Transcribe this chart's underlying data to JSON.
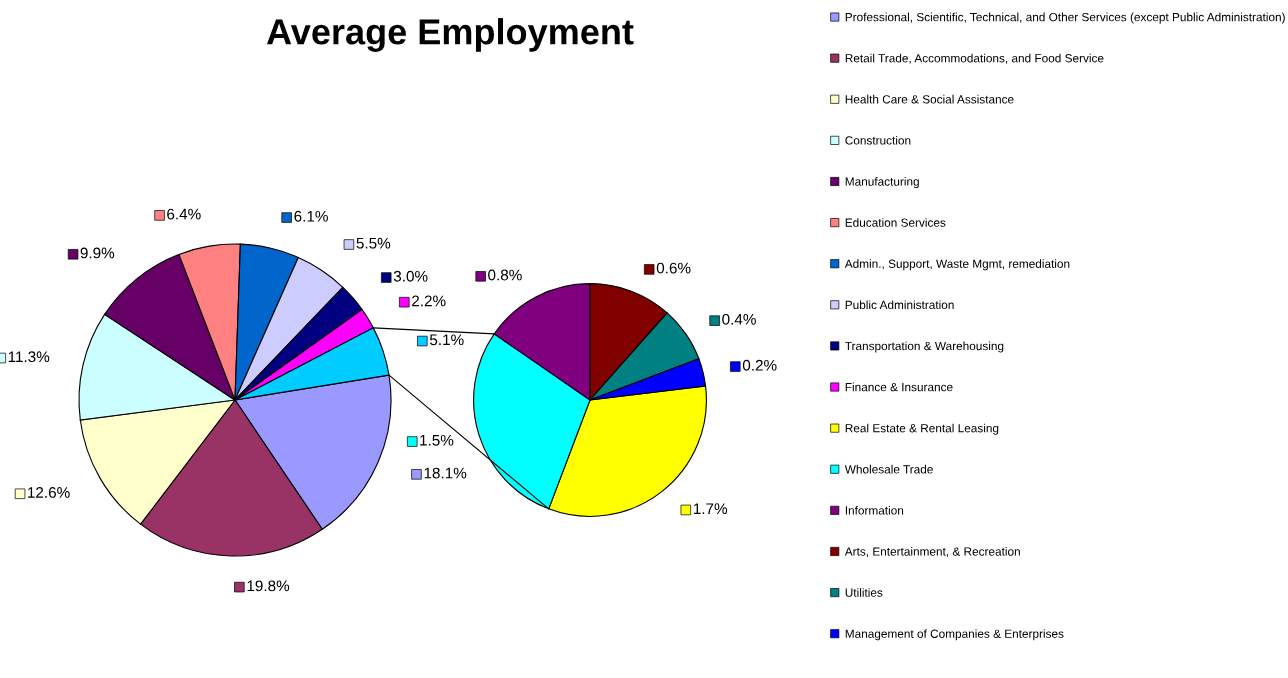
{
  "chart_data": [
    {
      "type": "pie",
      "title": "Average Employment",
      "categories": [
        "Professional, Scientific, Technical, and Other Services (except Public Administration)",
        "Retail Trade, Accommodations, and Food Service",
        "Health Care & Social Assistance",
        "Construction",
        "Manufacturing",
        "Education Services",
        "Admin., Support, Waste Mgmt, remediation",
        "Public Administration",
        "Transportation & Warehousing",
        "Finance & Insurance",
        null
      ],
      "values": [
        18.1,
        19.8,
        12.6,
        11.3,
        9.9,
        6.4,
        6.1,
        5.5,
        3.0,
        2.2,
        5.1
      ],
      "value_labels": [
        "18.1%",
        "19.8%",
        "12.6%",
        "11.3%",
        "9.9%",
        "6.4%",
        "6.1%",
        "5.5%",
        "3.0%",
        "2.2%",
        "5.1%"
      ],
      "colors": [
        "#9999ff",
        "#993366",
        "#ffffcc",
        "#ccffff",
        "#660066",
        "#ff8080",
        "#0066cc",
        "#ccccff",
        "#000080",
        "#ff00ff",
        "#00ccff"
      ],
      "legend": "right"
    },
    {
      "type": "pie",
      "categories": [
        "Real Estate & Rental Leasing",
        "Wholesale Trade",
        "Information",
        "Arts, Entertainment, & Recreation",
        "Utilities",
        "Management of Companies & Enterprises"
      ],
      "values": [
        1.7,
        1.5,
        0.8,
        0.6,
        0.4,
        0.2
      ],
      "value_labels": [
        "1.7%",
        "1.5%",
        "0.8%",
        "0.6%",
        "0.4%",
        "0.2%"
      ],
      "colors": [
        "#ffff00",
        "#00ffff",
        "#800080",
        "#800000",
        "#008080",
        "#0000ff"
      ],
      "legend": "right"
    }
  ]
}
